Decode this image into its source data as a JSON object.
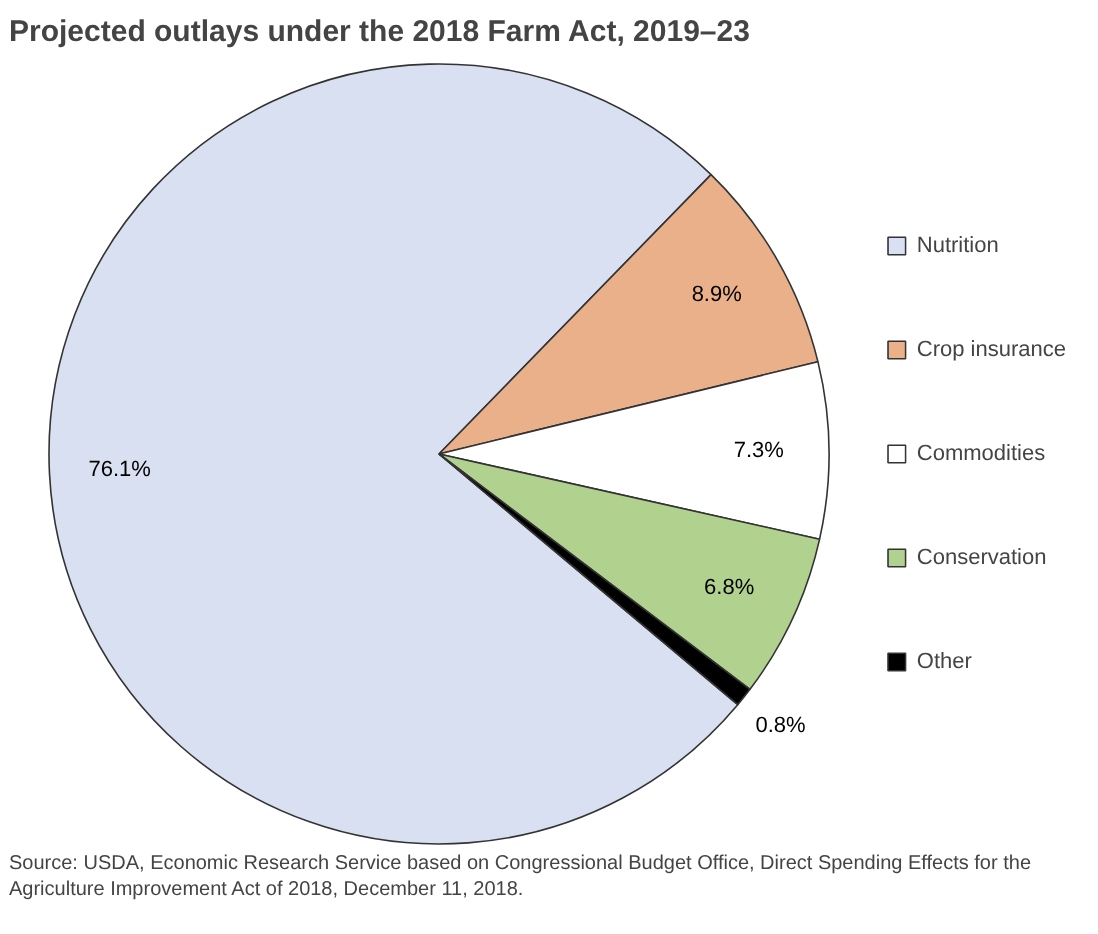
{
  "chart_data": {
    "type": "pie",
    "title": "Projected outlays under the 2018 Farm Act, 2019–23",
    "categories": [
      "Nutrition",
      "Crop insurance",
      "Commodities",
      "Conservation",
      "Other"
    ],
    "values": [
      76.1,
      8.9,
      7.3,
      6.8,
      0.8
    ],
    "colors": [
      "#d9e0f1",
      "#e9b08a",
      "#ffffff",
      "#b1d18f",
      "#000000"
    ],
    "value_labels": [
      "76.1%",
      "8.9%",
      "7.3%",
      "6.8%",
      "0.8%"
    ],
    "legend": "right",
    "annotations": [
      "Source: USDA, Economic Research Service based on Congressional Budget Office, Direct Spending Effects for the Agriculture Improvement Act of 2018, December 11, 2018."
    ]
  }
}
